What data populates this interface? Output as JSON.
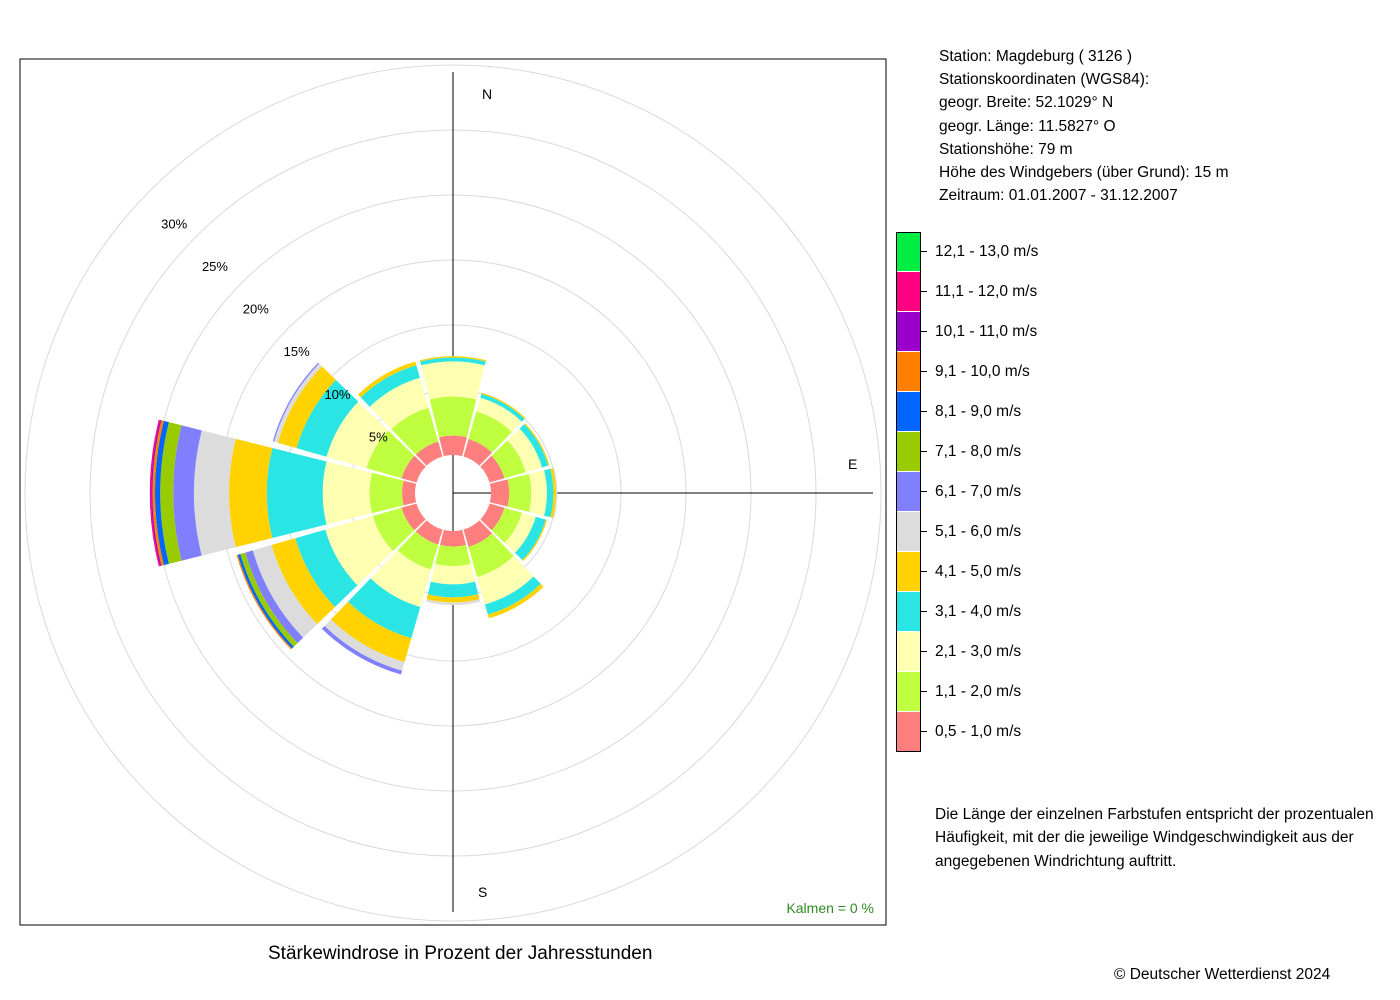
{
  "info": {
    "station": "Station:  Magdeburg  ( 3126 )",
    "coords_title": "Stationskoordinaten (WGS84):",
    "lat": "geogr. Breite: 52.1029° N",
    "lon": "geogr. Länge: 11.5827° O",
    "height": "Stationshöhe: 79 m",
    "anemometer": "Höhe des Windgebers (über Grund): 15 m",
    "period": "Zeitraum: 01.01.2007 - 31.12.2007"
  },
  "note": "Die Länge der einzelnen Farbstufen entspricht der prozentualen Häufigkeit, mit der die jeweilige Windgeschwindigkeit aus der angegebenen Windrichtung auftritt.",
  "caption": "Stärkewindrose in Prozent der Jahresstunden",
  "copyright": "© Deutscher Wetterdienst  2024",
  "chart_data": {
    "type": "wind-rose",
    "title": "Stärkewindrose in Prozent der Jahresstunden",
    "radial_unit": "%",
    "radial_ticks": [
      5,
      10,
      15,
      20,
      25,
      30
    ],
    "radial_tick_labels": [
      "5%",
      "10%",
      "15%",
      "20%",
      "25%",
      "30%"
    ],
    "direction_labels": {
      "N": "N",
      "E": "E",
      "S": "S"
    },
    "calm_label": "Kalmen  =  0 %",
    "speed_classes": [
      {
        "label": "0,5 - 1,0 m/s",
        "color": "#FF7F7F"
      },
      {
        "label": "1,1 - 2,0 m/s",
        "color": "#BFFF3F"
      },
      {
        "label": "2,1 - 3,0 m/s",
        "color": "#FFFFB2"
      },
      {
        "label": "3,1 - 4,0 m/s",
        "color": "#2BE5E5"
      },
      {
        "label": "4,1 - 5,0 m/s",
        "color": "#FFD200"
      },
      {
        "label": "5,1 - 6,0 m/s",
        "color": "#DCDCDC"
      },
      {
        "label": "6,1 - 7,0 m/s",
        "color": "#8080FF"
      },
      {
        "label": "7,1 - 8,0 m/s",
        "color": "#99CC00"
      },
      {
        "label": "8,1 - 9,0 m/s",
        "color": "#0066FF"
      },
      {
        "label": "9,1 - 10,0 m/s",
        "color": "#FF8000"
      },
      {
        "label": "10,1 - 11,0 m/s",
        "color": "#9900CC"
      },
      {
        "label": "11,1 - 12,0 m/s",
        "color": "#FF0080"
      },
      {
        "label": "12,1 - 13,0 m/s",
        "color": "#00EE44"
      }
    ],
    "directions": [
      0,
      30,
      60,
      90,
      120,
      150,
      180,
      210,
      240,
      270,
      300,
      330
    ],
    "series": [
      {
        "direction": 0,
        "values": [
          1.5,
          3.0,
          2.7,
          0.3,
          0.1
        ]
      },
      {
        "direction": 30,
        "values": [
          1.4,
          2.2,
          1.1,
          0.3,
          0.1
        ]
      },
      {
        "direction": 60,
        "values": [
          1.2,
          1.7,
          1.3,
          0.5,
          0.1
        ]
      },
      {
        "direction": 90,
        "values": [
          1.4,
          1.7,
          1.2,
          0.5,
          0.2,
          0.1
        ]
      },
      {
        "direction": 120,
        "values": [
          1.2,
          1.4,
          1.1,
          0.8,
          0.1
        ]
      },
      {
        "direction": 150,
        "values": [
          1.4,
          2.4,
          2.2,
          0.8,
          0.3
        ]
      },
      {
        "direction": 180,
        "values": [
          1.2,
          1.5,
          1.4,
          1.0,
          0.4,
          0.2
        ]
      },
      {
        "direction": 210,
        "values": [
          1.2,
          2.0,
          3.0,
          2.5,
          1.9,
          0.7,
          0.3
        ]
      },
      {
        "direction": 240,
        "values": [
          1.2,
          2.3,
          3.8,
          2.4,
          1.9,
          1.5,
          0.6,
          0.4,
          0.2,
          0.1
        ]
      },
      {
        "direction": 270,
        "values": [
          1.0,
          2.5,
          3.6,
          4.3,
          2.9,
          2.7,
          1.6,
          1.0,
          0.4,
          0.2,
          0.1,
          0.1
        ]
      },
      {
        "direction": 300,
        "values": [
          1.2,
          2.8,
          3.2,
          2.4,
          1.5,
          0.3,
          0.1
        ]
      },
      {
        "direction": 330,
        "values": [
          1.2,
          2.7,
          2.4,
          1.0,
          0.3
        ]
      }
    ]
  }
}
